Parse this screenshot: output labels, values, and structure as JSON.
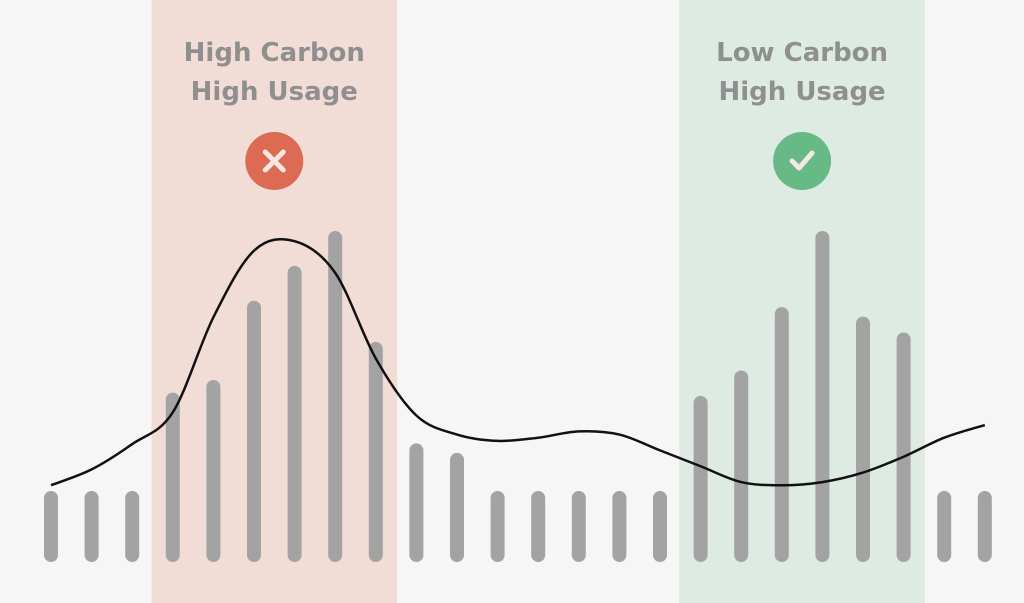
{
  "chart_data": {
    "type": "bar",
    "title": "",
    "xlabel": "",
    "ylabel": "",
    "ylim": [
      0,
      100
    ],
    "grid": false,
    "bar_color": "#a3a3a3",
    "curve_color": "#111111",
    "background": "#f6f6f6",
    "bars": {
      "name": "",
      "values": [
        18,
        18,
        18,
        49,
        53,
        78,
        89,
        100,
        65,
        33,
        30,
        18,
        18,
        18,
        18,
        18,
        48,
        56,
        76,
        100,
        73,
        68,
        18,
        18
      ]
    },
    "curve": {
      "name": "",
      "values": [
        22,
        27,
        35,
        45,
        75,
        96,
        99,
        89,
        62,
        44,
        38,
        36,
        37,
        39,
        38,
        33,
        28,
        23,
        22,
        23,
        26,
        31,
        37,
        41
      ]
    },
    "bands": [
      {
        "id": "high",
        "line1": "High Carbon",
        "line2": "High Usage",
        "icon": "close-icon",
        "fill": "#f2dcd6",
        "icon_color": "#dd6b53",
        "start_index": 3,
        "end_index": 8
      },
      {
        "id": "low",
        "line1": "Low Carbon",
        "line2": "High Usage",
        "icon": "check-icon",
        "fill": "#deebe2",
        "icon_color": "#67b985",
        "start_index": 16,
        "end_index": 21
      }
    ]
  }
}
